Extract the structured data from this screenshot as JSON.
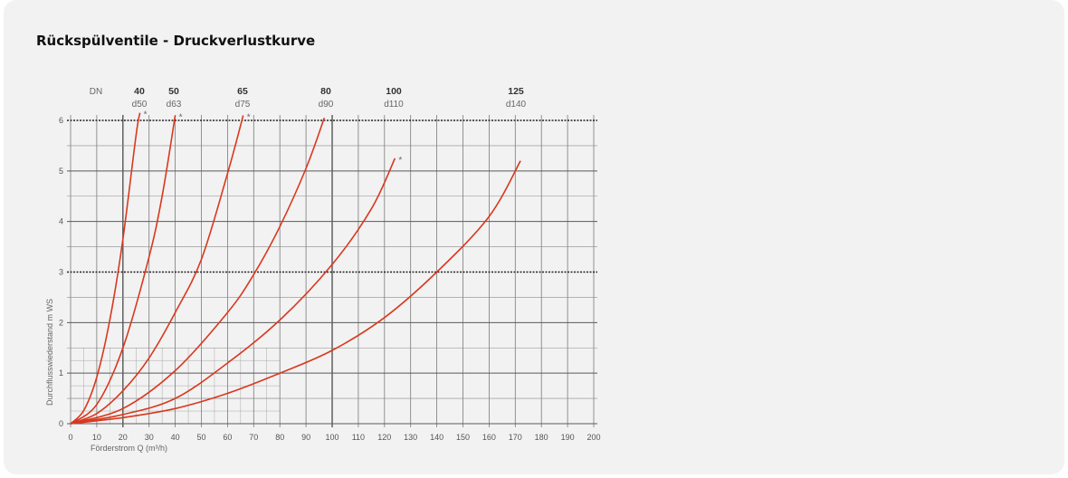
{
  "page": {
    "title": "Rückspülventile - Druckverlustkurve"
  },
  "chart_data": {
    "type": "line",
    "xlabel": "Förderstrom Q (m³/h)",
    "ylabel": "Durchflusswiederstand   m WS",
    "xlim": [
      0,
      200
    ],
    "ylim": [
      0,
      6
    ],
    "x_ticks": [
      "0",
      "10",
      "20",
      "30",
      "40",
      "50",
      "60",
      "70",
      "80",
      "90",
      "100",
      "110",
      "120",
      "130",
      "140",
      "150",
      "160",
      "170",
      "180",
      "190",
      "200"
    ],
    "y_ticks": [
      "0",
      "1",
      "2",
      "3",
      "4",
      "5",
      "6"
    ],
    "dn_header_label": "DN",
    "grid": true,
    "series": [
      {
        "name": "40",
        "sublabel": "d50",
        "marker": "*",
        "x": [
          0,
          5,
          10,
          15,
          20,
          25,
          26.5
        ],
        "y": [
          0,
          0.26,
          0.92,
          2.05,
          3.65,
          5.7,
          6.15
        ]
      },
      {
        "name": "50",
        "sublabel": "d63",
        "marker": "*",
        "x": [
          0,
          10,
          20,
          30,
          35,
          40
        ],
        "y": [
          0,
          0.38,
          1.5,
          3.3,
          4.5,
          6.1
        ]
      },
      {
        "name": "65",
        "sublabel": "d75",
        "marker": "*",
        "x": [
          0,
          10,
          20,
          30,
          40,
          50,
          60,
          66
        ],
        "y": [
          0,
          0.2,
          0.65,
          1.3,
          2.2,
          3.25,
          4.95,
          6.1
        ]
      },
      {
        "name": "80",
        "sublabel": "d90",
        "marker": "",
        "x": [
          0,
          20,
          40,
          60,
          70,
          80,
          90,
          97
        ],
        "y": [
          0,
          0.3,
          1.05,
          2.2,
          2.95,
          3.9,
          5.05,
          6.05
        ]
      },
      {
        "name": "100",
        "sublabel": "d110",
        "marker": "*",
        "x": [
          0,
          20,
          40,
          60,
          80,
          100,
          115,
          124
        ],
        "y": [
          0,
          0.18,
          0.5,
          1.2,
          2.05,
          3.15,
          4.25,
          5.25
        ]
      },
      {
        "name": "125",
        "sublabel": "d140",
        "marker": "",
        "x": [
          0,
          20,
          40,
          60,
          80,
          100,
          120,
          140,
          160,
          172
        ],
        "y": [
          0,
          0.12,
          0.3,
          0.6,
          1.0,
          1.45,
          2.1,
          3.0,
          4.1,
          5.2
        ]
      }
    ]
  }
}
